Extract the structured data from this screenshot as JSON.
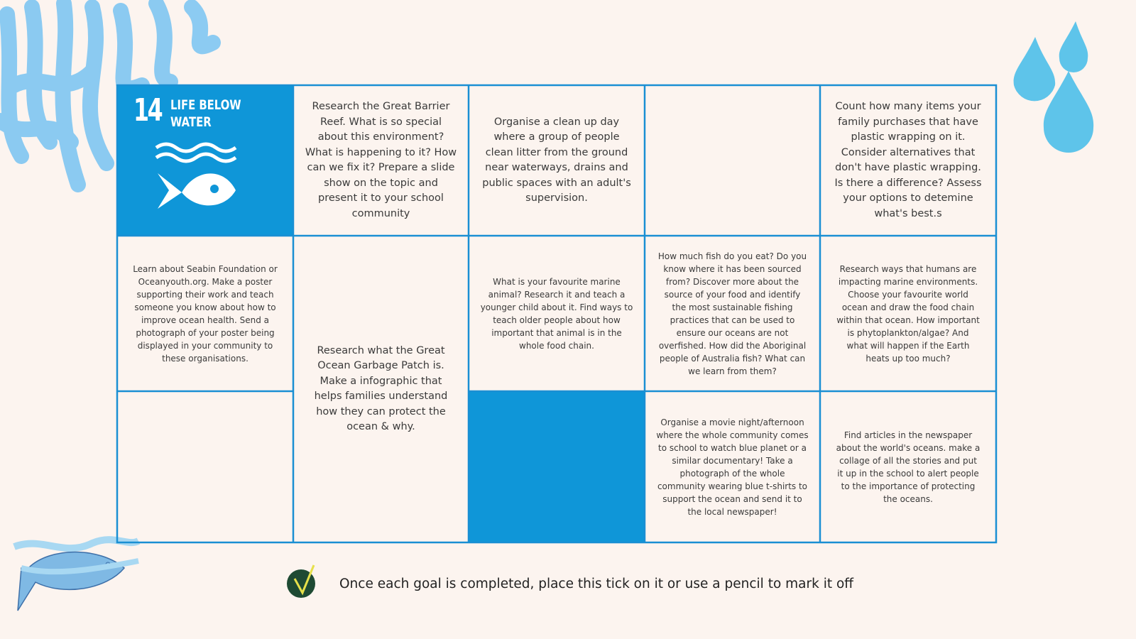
{
  "logo": {
    "number": "14",
    "title_lines": [
      "LIFE BELOW",
      "WATER"
    ]
  },
  "cells": [
    {
      "text": "Research the Great Barrier Reef. What is so special about this environment? What is happening to it? How can we fix it? Prepare a slide show on the topic and present it to your school community"
    },
    {
      "text": "Organise a clean up day where a group of people clean litter from the ground near waterways, drains and public spaces with an adult's supervision."
    },
    {
      "text": "Count how many items your family purchases that have plastic wrapping on it. Consider alternatives that don't have plastic wrapping. Is there a difference? Assess your options to detemine what's best.s"
    },
    {
      "text": "Learn about Seabin Foundation or Oceanyouth.org. Make a poster supporting their work and teach someone you know about how to improve ocean health. Send a photograph of your poster being displayed in your community to these organisations."
    },
    {
      "text": "Research what the Great Ocean Garbage Patch is. Make a infographic that helps families understand how they can protect the ocean & why."
    },
    {
      "text": "What is your favourite marine animal? Research it and teach a younger child about it. Find ways to teach older people about how important that animal is in the whole food chain."
    },
    {
      "text": "How much fish do you eat? Do you know where it has been sourced from? Discover more about the source of your food and identify the most sustainable fishing practices that can be used to ensure our oceans are not overfished. How did the Aboriginal people of Australia fish? What can we learn from them?"
    },
    {
      "text": "Research ways that humans are impacting marine environments. Choose your favourite world ocean and draw the food chain within that ocean. How important is phytoplankton/algae? And what will happen if the Earth heats up too much?"
    },
    {
      "text": "Organise a movie night/afternoon where the whole community comes to school to watch blue planet or a similar documentary! Take a photograph of the whole community wearing blue t-shirts to support the ocean and send it to the local newspaper!"
    },
    {
      "text": "Find articles in the newspaper about the world's oceans. make a collage of all the stories and put it up in the school to alert people to the importance of protecting the oceans."
    }
  ],
  "footer": "Once each goal is completed, place this tick on it or use a pencil to mark it off"
}
